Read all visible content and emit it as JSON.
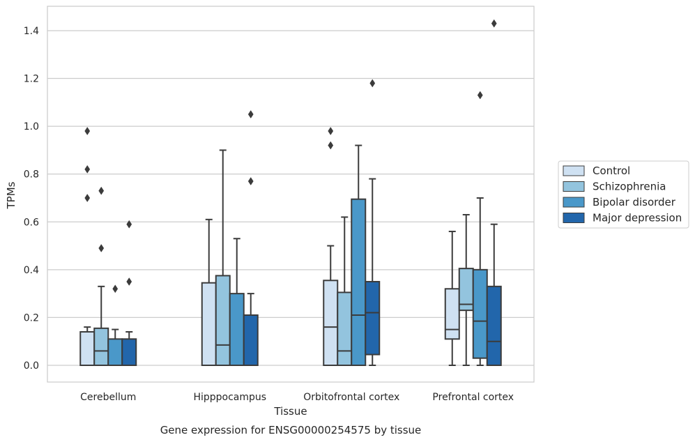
{
  "chart_data": {
    "type": "box",
    "title": "Gene expression for ENSG00000254575 by tissue",
    "xlabel": "Tissue",
    "ylabel": "TPMs",
    "ylim": [
      -0.07,
      1.5
    ],
    "yticks": [
      "0.0",
      "0.2",
      "0.4",
      "0.6",
      "0.8",
      "1.0",
      "1.2",
      "1.4"
    ],
    "ytick_values": [
      0,
      0.2,
      0.4,
      0.6,
      0.8,
      1.0,
      1.2,
      1.4
    ],
    "grid": "horizontal",
    "legend_position": "outside-right",
    "categories": [
      "Cerebellum",
      "Hipppocampus",
      "Orbitofrontal cortex",
      "Prefrontal cortex"
    ],
    "series": [
      {
        "name": "Control",
        "color": "#cfe1f2",
        "boxes": [
          {
            "whislo": 0,
            "q1": 0,
            "med": 0,
            "q3": 0.14,
            "whishi": 0.16,
            "fliers": [
              0.98,
              0.82,
              0.7
            ]
          },
          {
            "whislo": 0,
            "q1": 0,
            "med": 0,
            "q3": 0.345,
            "whishi": 0.61,
            "fliers": []
          },
          {
            "whislo": 0,
            "q1": 0,
            "med": 0.16,
            "q3": 0.355,
            "whishi": 0.5,
            "fliers": [
              0.98,
              0.92
            ]
          },
          {
            "whislo": 0,
            "q1": 0.11,
            "med": 0.15,
            "q3": 0.32,
            "whishi": 0.56,
            "fliers": []
          }
        ]
      },
      {
        "name": "Schizophrenia",
        "color": "#93c4de",
        "boxes": [
          {
            "whislo": 0,
            "q1": 0,
            "med": 0.06,
            "q3": 0.155,
            "whishi": 0.33,
            "fliers": [
              0.73,
              0.49
            ]
          },
          {
            "whislo": 0,
            "q1": 0,
            "med": 0.085,
            "q3": 0.375,
            "whishi": 0.9,
            "fliers": []
          },
          {
            "whislo": 0,
            "q1": 0,
            "med": 0.06,
            "q3": 0.305,
            "whishi": 0.62,
            "fliers": []
          },
          {
            "whislo": 0,
            "q1": 0.23,
            "med": 0.255,
            "q3": 0.405,
            "whishi": 0.63,
            "fliers": []
          }
        ]
      },
      {
        "name": "Bipolar disorder",
        "color": "#4a98c9",
        "boxes": [
          {
            "whislo": 0,
            "q1": 0,
            "med": 0,
            "q3": 0.11,
            "whishi": 0.15,
            "fliers": [
              0.32
            ]
          },
          {
            "whislo": 0,
            "q1": 0,
            "med": 0,
            "q3": 0.3,
            "whishi": 0.53,
            "fliers": []
          },
          {
            "whislo": 0,
            "q1": 0,
            "med": 0.21,
            "q3": 0.695,
            "whishi": 0.92,
            "fliers": []
          },
          {
            "whislo": 0,
            "q1": 0.03,
            "med": 0.185,
            "q3": 0.4,
            "whishi": 0.7,
            "fliers": [
              1.13
            ]
          }
        ]
      },
      {
        "name": "Major depression",
        "color": "#2266ab",
        "boxes": [
          {
            "whislo": 0,
            "q1": 0,
            "med": 0,
            "q3": 0.11,
            "whishi": 0.14,
            "fliers": [
              0.59,
              0.35
            ]
          },
          {
            "whislo": 0,
            "q1": 0,
            "med": 0,
            "q3": 0.21,
            "whishi": 0.3,
            "fliers": [
              1.05,
              0.77
            ]
          },
          {
            "whislo": 0,
            "q1": 0.045,
            "med": 0.22,
            "q3": 0.35,
            "whishi": 0.78,
            "fliers": [
              1.18
            ]
          },
          {
            "whislo": 0,
            "q1": 0,
            "med": 0.1,
            "q3": 0.33,
            "whishi": 0.59,
            "fliers": [
              1.43
            ]
          }
        ]
      }
    ]
  }
}
